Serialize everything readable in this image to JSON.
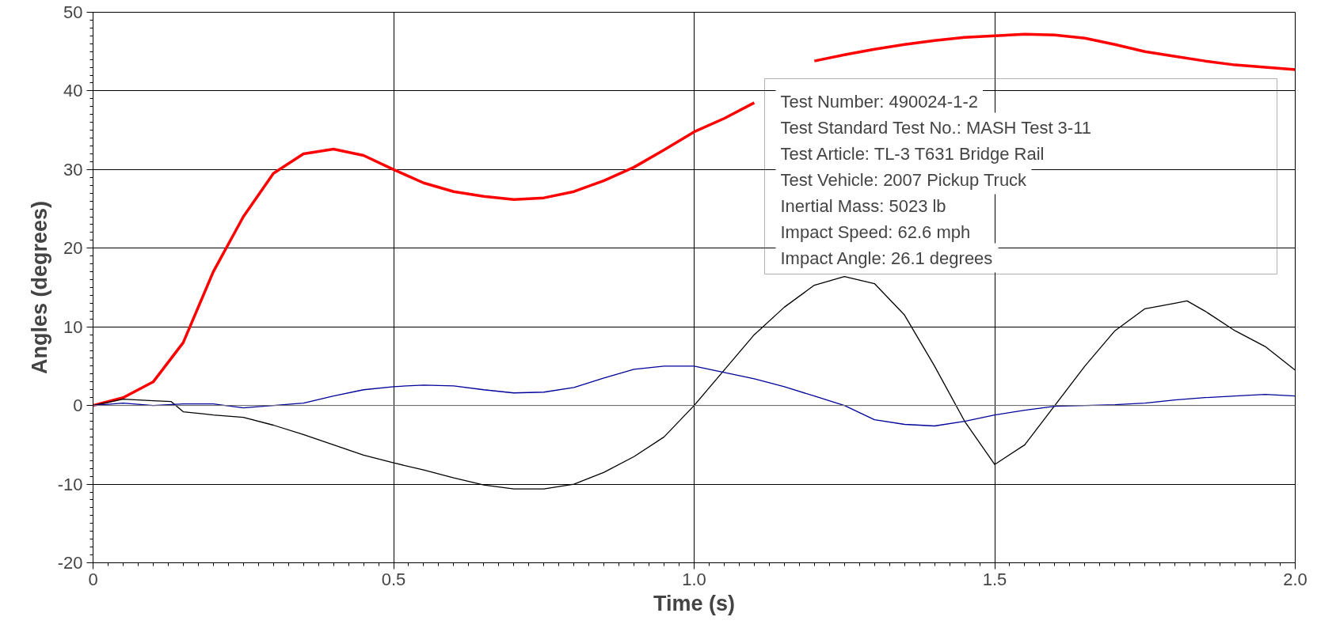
{
  "chart_data": {
    "type": "line",
    "xlabel": "Time (s)",
    "ylabel": "Angles (degrees)",
    "xlim": [
      0,
      2.0
    ],
    "ylim": [
      -20,
      50
    ],
    "xticks": [
      0,
      0.5,
      {
        "value": 1,
        "label": "1.0"
      },
      1.5,
      {
        "value": 2,
        "label": "2.0"
      }
    ],
    "yticks": [
      -20,
      -10,
      0,
      10,
      20,
      30,
      40,
      50
    ],
    "grid": true,
    "ref_lines": [
      {
        "axis": "y",
        "value": 0,
        "color": "#808080"
      }
    ],
    "annotations": [
      "Test Number: 490024-1-2",
      "Test Standard Test No.: MASH Test 3-11",
      "Test Article: TL-3 T631 Bridge Rail",
      "Test Vehicle: 2007 Pickup Truck",
      "Inertial Mass: 5023 lb",
      "Impact Speed: 62.6 mph",
      "Impact Angle: 26.1 degrees"
    ],
    "series": [
      {
        "color": "#ff0000",
        "x": [
          0,
          0.05,
          0.1,
          0.15,
          0.2,
          0.25,
          0.3,
          0.35,
          0.4,
          0.45,
          0.5,
          0.55,
          0.6,
          0.65,
          0.7,
          0.75,
          0.8,
          0.85,
          0.9,
          0.95,
          1.0,
          1.05,
          1.1,
          1.15,
          1.2,
          1.25,
          1.3,
          1.35,
          1.4,
          1.45,
          1.5,
          1.55,
          1.6,
          1.65,
          1.7,
          1.75,
          1.8,
          1.85,
          1.9,
          1.95,
          2.0
        ],
        "values": [
          0,
          1,
          3,
          8,
          17,
          24,
          29.5,
          32,
          32.6,
          31.8,
          30,
          28.3,
          27.2,
          26.6,
          26.2,
          26.4,
          27.2,
          28.6,
          30.3,
          32.5,
          34.8,
          36.5,
          38.5,
          null,
          43.8,
          44.6,
          45.3,
          45.9,
          46.4,
          46.8,
          47.0,
          47.2,
          47.1,
          46.7,
          45.9,
          45.0,
          44.4,
          43.8,
          43.3,
          43.0,
          42.7
        ]
      },
      {
        "color": "#000000",
        "x": [
          0,
          0.05,
          0.1,
          0.13,
          0.15,
          0.2,
          0.25,
          0.3,
          0.35,
          0.4,
          0.45,
          0.5,
          0.55,
          0.6,
          0.65,
          0.7,
          0.75,
          0.8,
          0.85,
          0.9,
          0.95,
          1.0,
          1.05,
          1.1,
          1.15,
          1.2,
          1.25,
          1.3,
          1.35,
          1.4,
          1.45,
          1.5,
          1.55,
          1.6,
          1.65,
          1.7,
          1.75,
          1.8,
          1.82,
          1.85,
          1.9,
          1.95,
          2.0
        ],
        "values": [
          0,
          0.8,
          0.6,
          0.5,
          -0.8,
          -1.2,
          -1.5,
          -2.5,
          -3.7,
          -5,
          -6.3,
          -7.3,
          -8.2,
          -9.2,
          -10.1,
          -10.6,
          -10.6,
          -10,
          -8.5,
          -6.5,
          -4,
          0,
          4.5,
          9,
          12.5,
          15.3,
          16.4,
          15.5,
          11.5,
          5,
          -2,
          -7.5,
          -5,
          0,
          5,
          9.5,
          12.3,
          13,
          13.3,
          12,
          9.5,
          7.5,
          4.5
        ]
      },
      {
        "color": "#000099",
        "x": [
          0,
          0.05,
          0.1,
          0.15,
          0.2,
          0.25,
          0.3,
          0.35,
          0.4,
          0.45,
          0.5,
          0.55,
          0.6,
          0.65,
          0.7,
          0.75,
          0.8,
          0.85,
          0.9,
          0.95,
          1.0,
          1.05,
          1.1,
          1.15,
          1.2,
          1.25,
          1.3,
          1.35,
          1.4,
          1.45,
          1.5,
          1.55,
          1.6,
          1.65,
          1.7,
          1.75,
          1.8,
          1.85,
          1.9,
          1.95,
          2.0
        ],
        "values": [
          0,
          0.3,
          0,
          0.2,
          0.2,
          -0.3,
          0,
          0.3,
          1.2,
          2,
          2.4,
          2.6,
          2.5,
          2,
          1.6,
          1.7,
          2.3,
          3.5,
          4.6,
          5,
          5,
          4.2,
          3.4,
          2.4,
          1.2,
          0,
          -1.8,
          -2.4,
          -2.6,
          -2,
          -1.2,
          -0.6,
          -0.1,
          0,
          0.1,
          0.3,
          0.7,
          1,
          1.2,
          1.4,
          1.2
        ]
      }
    ]
  }
}
